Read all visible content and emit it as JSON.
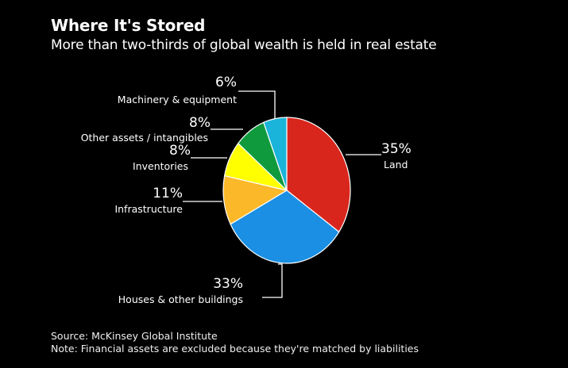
{
  "title": "Where It's Stored",
  "subtitle": "More than two-thirds of global wealth is held in real estate",
  "chart_data": {
    "type": "pie",
    "start_angle_deg": 0,
    "direction": "clockwise",
    "slices": [
      {
        "name": "Land",
        "value": 35,
        "label": "35%",
        "color": "#d9261c"
      },
      {
        "name": "Houses & other buildings",
        "value": 33,
        "label": "33%",
        "color": "#1a8fe3"
      },
      {
        "name": "Infrastructure",
        "value": 11,
        "label": "11%",
        "color": "#fbb829"
      },
      {
        "name": "Inventories",
        "value": 8,
        "label": "8%",
        "color": "#ffff00"
      },
      {
        "name": "Other assets / intangibles",
        "value": 8,
        "label": "8%",
        "color": "#109a3e"
      },
      {
        "name": "Machinery & equipment",
        "value": 6,
        "label": "6%",
        "color": "#1ab3d9"
      }
    ]
  },
  "footer": {
    "source": "Source: McKinsey Global Institute",
    "note": "Note: Financial assets are excluded because they're matched by liabilities"
  }
}
